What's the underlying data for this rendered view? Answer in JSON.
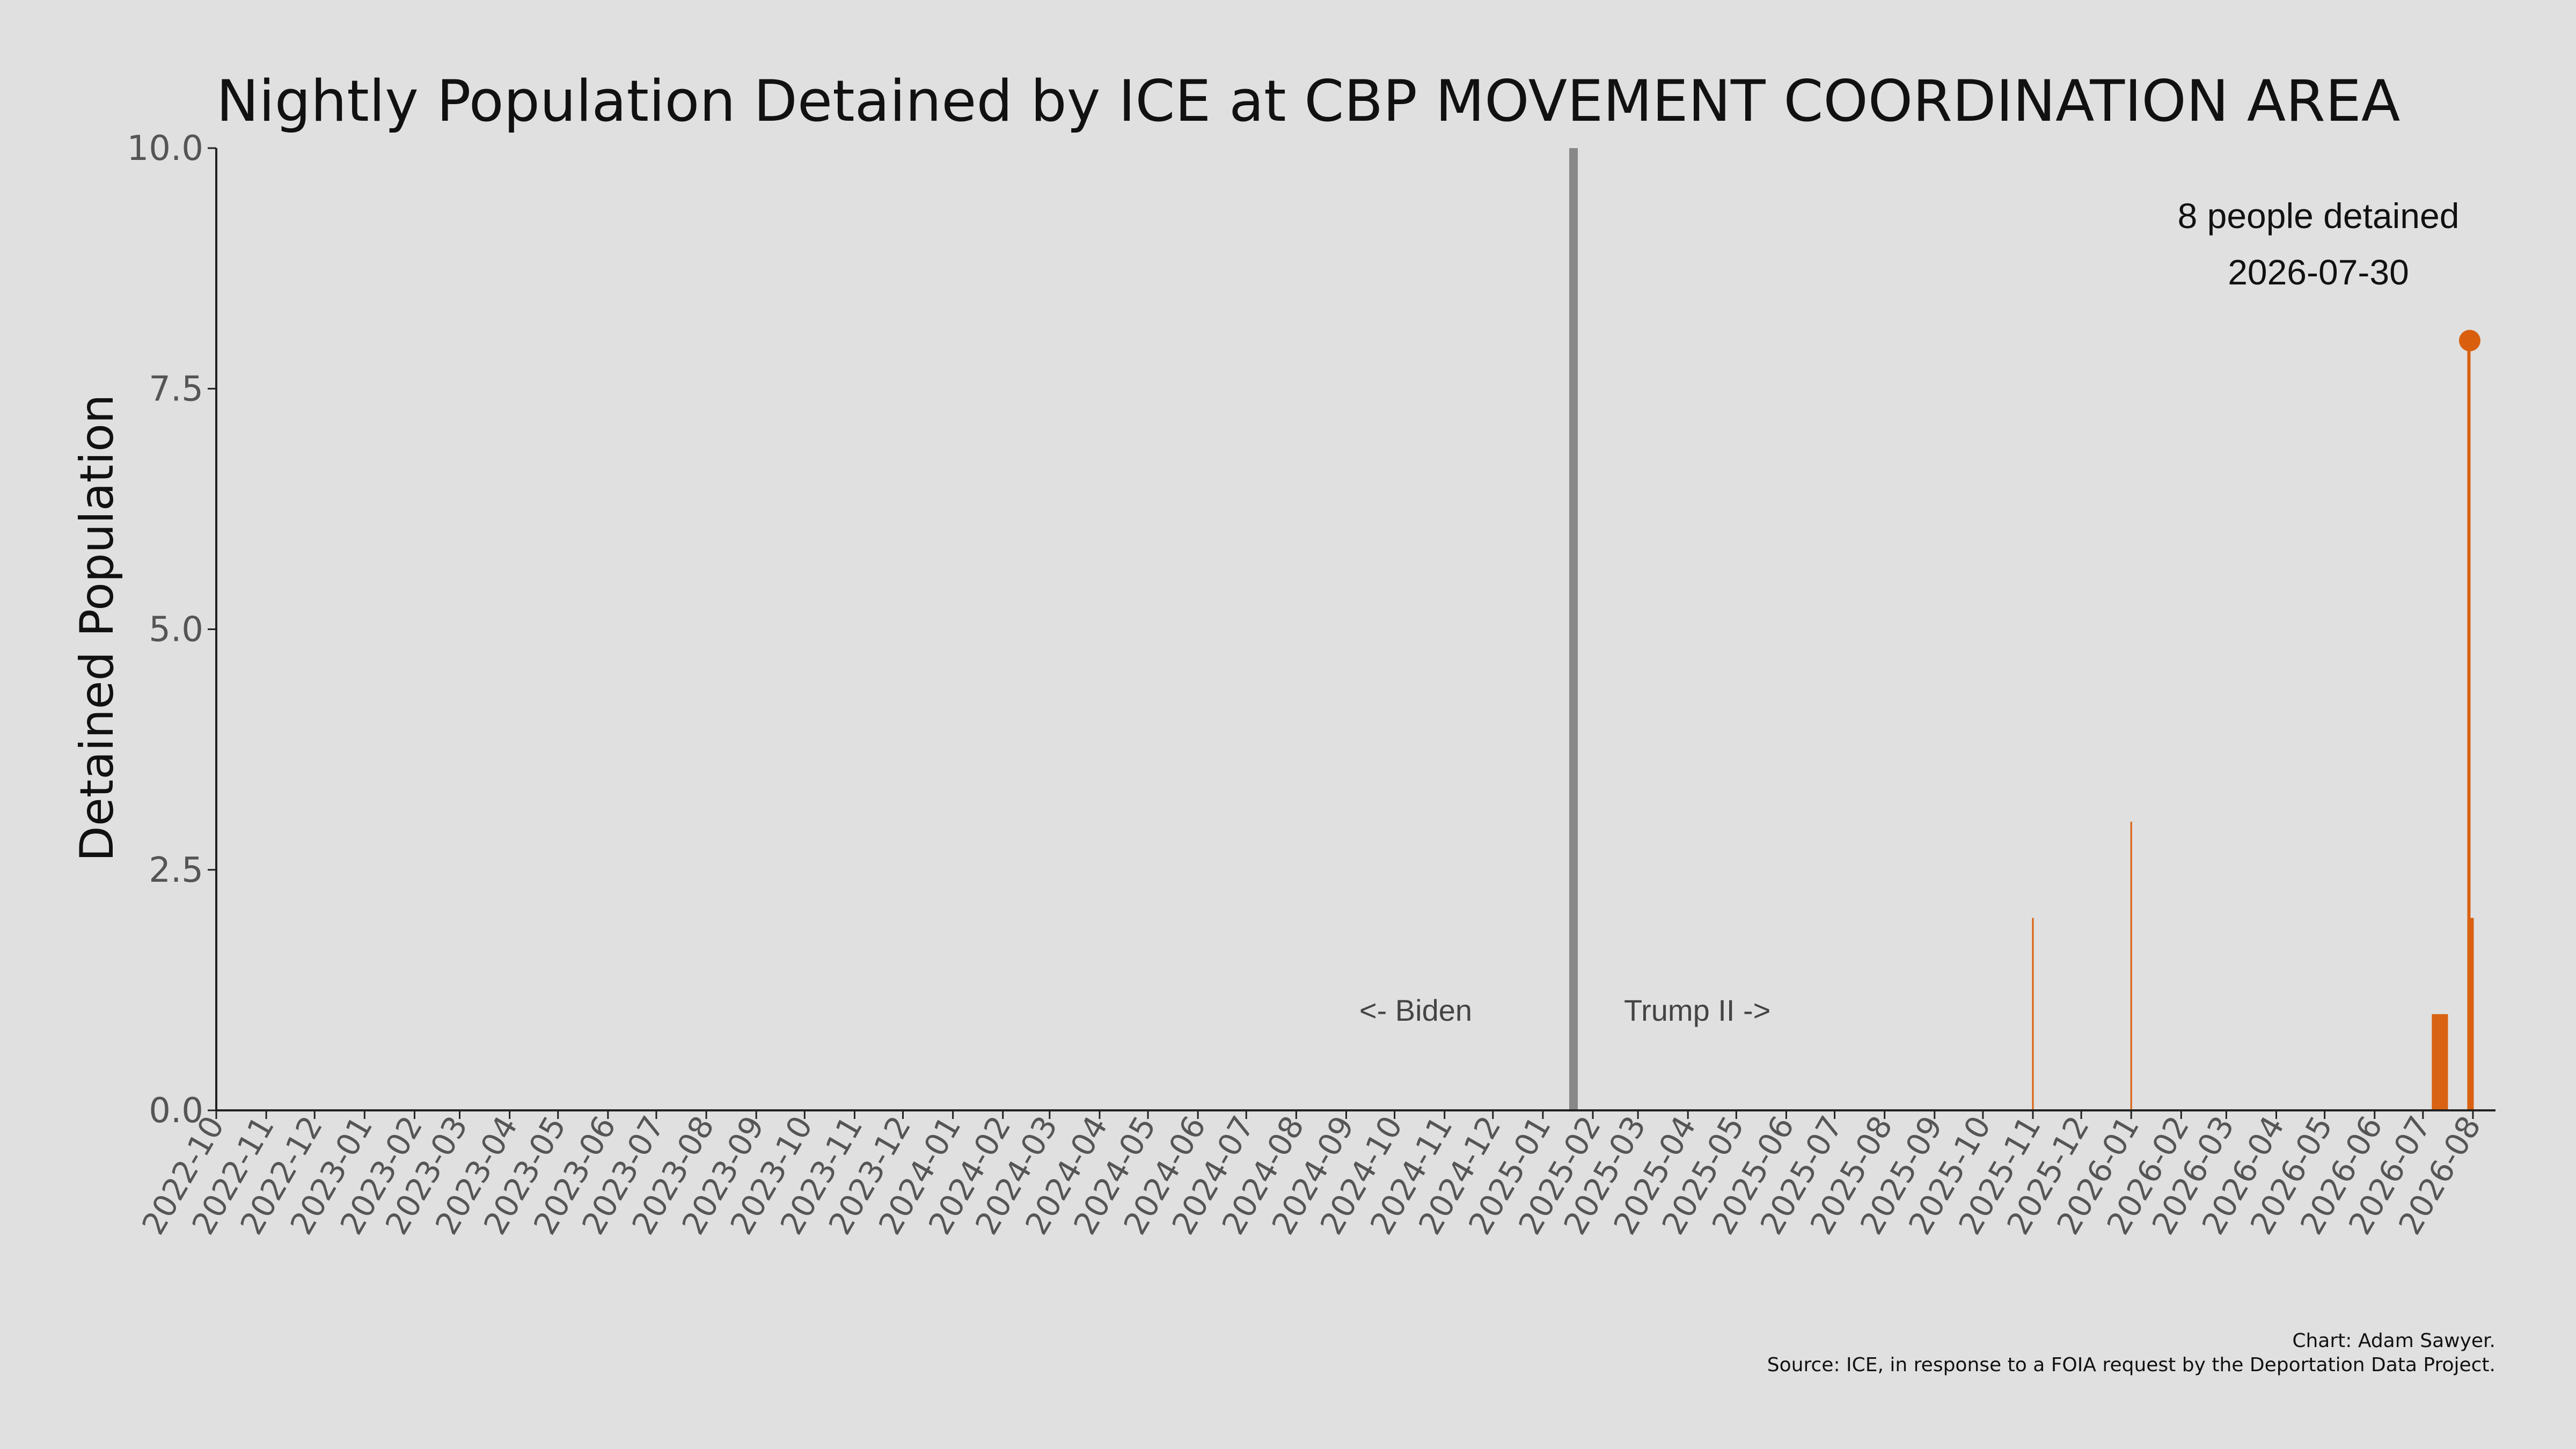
{
  "chart_data": {
    "type": "bar",
    "title": "Nightly Population Detained by ICE at CBP MOVEMENT COORDINATION AREA",
    "xlabel": "",
    "ylabel": "Detained Population",
    "ylim": [
      0,
      10
    ],
    "y_ticks": [
      "0.0",
      "2.5",
      "5.0",
      "7.5",
      "10.0"
    ],
    "x_range": [
      "2022-10-01",
      "2026-08-15"
    ],
    "x_ticks": [
      "2022-10",
      "2022-11",
      "2022-12",
      "2023-01",
      "2023-02",
      "2023-03",
      "2023-04",
      "2023-05",
      "2023-06",
      "2023-07",
      "2023-08",
      "2023-09",
      "2023-10",
      "2023-11",
      "2023-12",
      "2024-01",
      "2024-02",
      "2024-03",
      "2024-04",
      "2024-05",
      "2024-06",
      "2024-07",
      "2024-08",
      "2024-09",
      "2024-10",
      "2024-11",
      "2024-12",
      "2025-01",
      "2025-02",
      "2025-03",
      "2025-04",
      "2025-05",
      "2025-06",
      "2025-07",
      "2025-08",
      "2025-09",
      "2025-10",
      "2025-11",
      "2025-12",
      "2026-01",
      "2026-02",
      "2026-03",
      "2026-04",
      "2026-05",
      "2026-06",
      "2026-07",
      "2026-08"
    ],
    "grid": false,
    "bar_color": "#d95f0e",
    "series": [
      {
        "points": [
          {
            "date": "2025-11-01",
            "value": 2
          },
          {
            "date": "2026-01-01",
            "value": 3
          },
          {
            "date": "2026-07-07",
            "value": 1
          },
          {
            "date": "2026-07-08",
            "value": 1
          },
          {
            "date": "2026-07-09",
            "value": 1
          },
          {
            "date": "2026-07-10",
            "value": 1
          },
          {
            "date": "2026-07-11",
            "value": 1
          },
          {
            "date": "2026-07-12",
            "value": 1
          },
          {
            "date": "2026-07-13",
            "value": 1
          },
          {
            "date": "2026-07-14",
            "value": 1
          },
          {
            "date": "2026-07-15",
            "value": 1
          },
          {
            "date": "2026-07-16",
            "value": 1
          },
          {
            "date": "2026-07-29",
            "value": 8
          },
          {
            "date": "2026-07-30",
            "value": 8
          },
          {
            "date": "2026-07-31",
            "value": 2
          },
          {
            "date": "2026-08-01",
            "value": 2
          }
        ]
      }
    ],
    "divider": {
      "date": "2025-01-20",
      "color": "#888888"
    },
    "era_labels": {
      "left": "<- Biden",
      "right": "Trump II ->"
    },
    "callout": {
      "line1": "8 people detained",
      "line2": "2026-07-30",
      "point_date": "2026-07-30",
      "point_value": 8,
      "color": "#d95f0e"
    },
    "credits": {
      "line1": "Chart: Adam Sawyer.",
      "line2": "Source: ICE, in response to a FOIA request by the Deportation Data Project."
    }
  }
}
